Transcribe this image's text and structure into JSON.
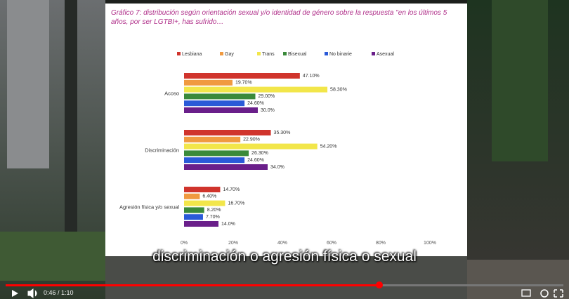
{
  "chart_data": {
    "type": "bar",
    "orientation": "horizontal",
    "title": "Gráfico 7: distribución según orientación sexual y/o identidad de género sobre la respuesta \"en los últimos 5 años, por ser LGTBI+, has sufrido…",
    "categories": [
      "Acoso",
      "Discriminación",
      "Agresión física y/o sexual"
    ],
    "series": [
      {
        "name": "Lesbiana",
        "color": "#d0342c",
        "values": [
          47.1,
          35.3,
          14.7
        ],
        "value_labels": [
          "47.10%",
          "35.30%",
          "14.70%"
        ]
      },
      {
        "name": "Gay",
        "color": "#f09a40",
        "values": [
          19.7,
          22.9,
          6.4
        ],
        "value_labels": [
          "19.70%",
          "22.90%",
          "6.40%"
        ]
      },
      {
        "name": "Trans",
        "color": "#f2e64a",
        "values": [
          58.3,
          54.2,
          16.7
        ],
        "value_labels": [
          "58.30%",
          "54.20%",
          "16.70%"
        ]
      },
      {
        "name": "Bisexual",
        "color": "#3a8a3a",
        "values": [
          29.0,
          26.3,
          8.2
        ],
        "value_labels": [
          "29.00%",
          "26.30%",
          "8.20%"
        ]
      },
      {
        "name": "No binarie",
        "color": "#2a5ad8",
        "values": [
          24.6,
          24.6,
          7.7
        ],
        "value_labels": [
          "24.60%",
          "24.60%",
          "7.70%"
        ]
      },
      {
        "name": "Asexual",
        "color": "#6a1f8a",
        "values": [
          30.0,
          34.0,
          14.0
        ],
        "value_labels": [
          "30.0%",
          "34.0%",
          "14.0%"
        ]
      }
    ],
    "xlim": [
      0,
      100
    ],
    "xticks": [
      {
        "value": 0,
        "label": "0%"
      },
      {
        "value": 20,
        "label": "20%"
      },
      {
        "value": 40,
        "label": "40%"
      },
      {
        "value": 60,
        "label": "60%"
      },
      {
        "value": 80,
        "label": "80%"
      },
      {
        "value": 100,
        "label": "100%"
      }
    ],
    "legend": "top"
  },
  "player": {
    "caption": "discriminación o agresión física o sexual",
    "time": "0:46 / 1:10"
  }
}
